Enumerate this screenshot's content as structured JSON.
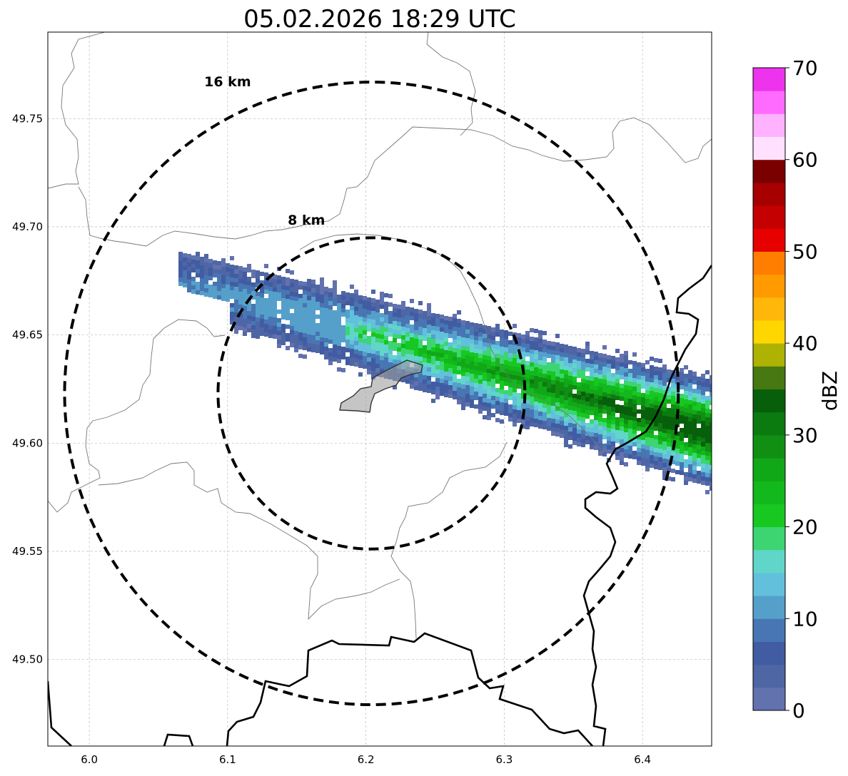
{
  "map": {
    "title": "05.02.2026 18:29 UTC",
    "x_axis": {
      "range": [
        5.97,
        6.45
      ],
      "ticks": [
        6.0,
        6.1,
        6.2,
        6.3,
        6.4
      ],
      "tick_labels": [
        "6.0",
        "6.1",
        "6.2",
        "6.3",
        "6.4"
      ]
    },
    "y_axis": {
      "range": [
        49.46,
        49.79
      ],
      "ticks": [
        49.75,
        49.7,
        49.65,
        49.6,
        49.55,
        49.5
      ],
      "tick_labels": [
        "49.75",
        "49.70",
        "49.65",
        "49.60",
        "49.55",
        "49.50"
      ]
    },
    "radar_center": {
      "lon": 6.204,
      "lat": 49.623
    },
    "range_rings": [
      {
        "label": "8 km",
        "radius_km": 8,
        "label_lon": 6.157,
        "label_lat": 49.701
      },
      {
        "label": "16 km",
        "radius_km": 16,
        "label_lon": 6.1,
        "label_lat": 49.765
      }
    ],
    "colorbar": {
      "label": "dBZ",
      "min": 0,
      "max": 70,
      "ticks": [
        0,
        10,
        20,
        30,
        40,
        50,
        60,
        70
      ],
      "tick_labels": [
        "0",
        "10",
        "20",
        "30",
        "40",
        "50",
        "60",
        "70"
      ],
      "colors": [
        "#6272ae",
        "#4f66a5",
        "#415ca3",
        "#4876b2",
        "#55a0cb",
        "#62c0dd",
        "#60d6c8",
        "#3cd572",
        "#16c820",
        "#13b81c",
        "#11a818",
        "#108f13",
        "#0b7a0f",
        "#075f0b",
        "#477812",
        "#adb203",
        "#ffd600",
        "#ffb80a",
        "#ff9a00",
        "#ff7e00",
        "#e60000",
        "#c40000",
        "#a60000",
        "#7a0000",
        "#ffe1ff",
        "#ffb2ff",
        "#ff6bff",
        "#ee33ee"
      ]
    },
    "precip_band": {
      "description_hidden": true,
      "axis_start": {
        "lon": 6.07,
        "lat": 49.675
      },
      "axis_end": {
        "lon": 6.45,
        "lat": 49.605
      }
    },
    "city_outline_color": "#9e9e9e"
  }
}
